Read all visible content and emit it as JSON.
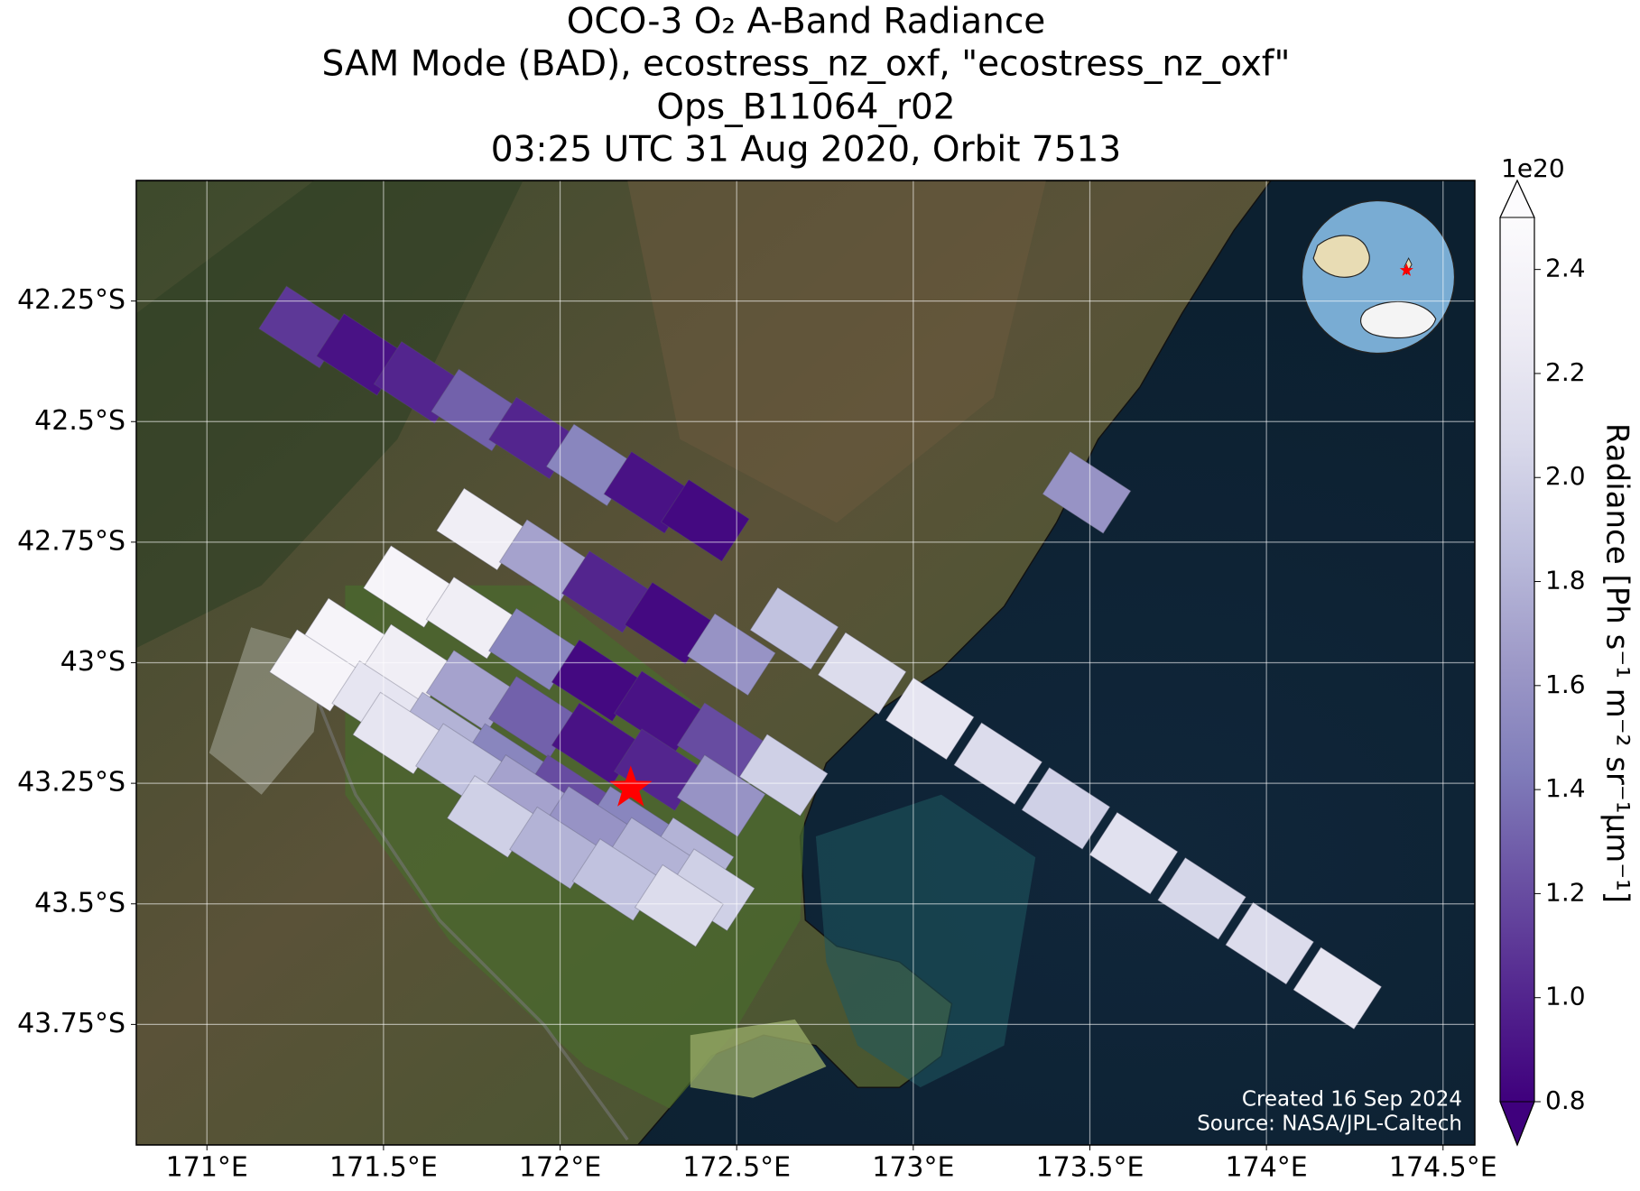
{
  "chart_data": {
    "type": "map",
    "title": [
      "OCO-3 O₂ A-Band Radiance",
      "SAM Mode (BAD), ecostress_nz_oxf, \"ecostress_nz_oxf\"",
      "Ops_B11064_r02",
      "03:25 UTC 31 Aug 2020, Orbit 7513"
    ],
    "xlim": [
      170.8,
      174.59
    ],
    "ylim": [
      -42,
      -44
    ],
    "xticks": [
      {
        "value": 171,
        "label": "171°E"
      },
      {
        "value": 171.5,
        "label": "171.5°E"
      },
      {
        "value": 172,
        "label": "172°E"
      },
      {
        "value": 172.5,
        "label": "172.5°E"
      },
      {
        "value": 173,
        "label": "173°E"
      },
      {
        "value": 173.5,
        "label": "173.5°E"
      },
      {
        "value": 174,
        "label": "174°E"
      },
      {
        "value": 174.5,
        "label": "174.5°E"
      }
    ],
    "yticks": [
      {
        "value": -42.25,
        "label": "42.25°S"
      },
      {
        "value": -42.5,
        "label": "42.5°S"
      },
      {
        "value": -42.75,
        "label": "42.75°S"
      },
      {
        "value": -43,
        "label": "43°S"
      },
      {
        "value": -43.25,
        "label": "43.25°S"
      },
      {
        "value": -43.5,
        "label": "43.5°S"
      },
      {
        "value": -43.75,
        "label": "43.75°S"
      }
    ],
    "grid": true,
    "x": [
      171.272,
      171.435,
      171.598,
      171.76,
      171.923,
      172.086,
      172.249,
      172.411,
      172.663,
      172.855,
      173.047,
      173.24,
      173.432,
      173.624,
      173.817,
      174.009,
      174.201,
      173.491,
      171.775,
      171.953,
      172.13,
      172.308,
      172.485,
      171.568,
      171.746,
      171.923,
      172.101,
      172.278,
      172.456,
      172.633,
      171.391,
      171.568,
      171.746,
      171.923,
      172.101,
      172.278,
      172.456,
      171.302,
      171.479,
      171.657,
      171.834,
      172.012,
      172.189,
      172.367,
      171.538,
      171.716,
      171.893,
      172.071,
      172.249,
      172.426,
      171.805,
      171.982,
      172.16,
      172.337
    ],
    "y": [
      -42.304,
      -42.361,
      -42.419,
      -42.476,
      -42.534,
      -42.59,
      -42.647,
      -42.705,
      -42.929,
      -43.022,
      -43.116,
      -43.209,
      -43.302,
      -43.395,
      -43.489,
      -43.582,
      -43.675,
      -42.647,
      -42.723,
      -42.788,
      -42.853,
      -42.918,
      -42.983,
      -42.842,
      -42.907,
      -42.972,
      -43.037,
      -43.102,
      -43.168,
      -43.233,
      -42.951,
      -43.005,
      -43.059,
      -43.113,
      -43.168,
      -43.222,
      -43.276,
      -43.016,
      -43.081,
      -43.146,
      -43.211,
      -43.276,
      -43.341,
      -43.406,
      -43.146,
      -43.211,
      -43.276,
      -43.341,
      -43.406,
      -43.471,
      -43.319,
      -43.384,
      -43.45,
      -43.504
    ],
    "values": [
      1.1,
      0.9,
      1.0,
      1.3,
      1.0,
      1.5,
      0.9,
      0.85,
      1.9,
      2.1,
      2.2,
      2.1,
      2.0,
      2.15,
      2.05,
      2.1,
      2.2,
      1.6,
      2.3,
      1.7,
      1.0,
      0.85,
      1.6,
      2.4,
      2.3,
      1.5,
      0.85,
      0.9,
      1.2,
      2.0,
      2.4,
      2.3,
      1.7,
      1.3,
      0.9,
      1.0,
      1.6,
      2.4,
      2.2,
      1.8,
      1.5,
      1.2,
      1.5,
      1.8,
      2.2,
      1.9,
      1.7,
      1.6,
      1.8,
      2.0,
      2.0,
      1.8,
      1.9,
      2.1
    ],
    "target": {
      "x": 172.2,
      "y": -43.26,
      "color": "#ff0000"
    },
    "colorbar": {
      "label": "Radiance [Ph s⁻¹ m⁻² sr⁻¹μm⁻¹]",
      "offset_label": "1e20",
      "clim": [
        0.8,
        2.5
      ],
      "ticks": [
        0.8,
        {
          "value": 1,
          "label": "1.0"
        },
        1.2,
        1.4,
        1.6,
        1.8,
        {
          "value": 2,
          "label": "2.0"
        },
        2.2,
        2.4
      ],
      "colors": [
        "#3f007d",
        "#54278f",
        "#6a51a3",
        "#807dba",
        "#9e9ac8",
        "#bcbddc",
        "#dadaeb",
        "#efedf5",
        "#fcfbfd"
      ]
    },
    "credits": [
      "Created 16 Sep 2024",
      "Source: NASA/JPL-Caltech"
    ]
  }
}
